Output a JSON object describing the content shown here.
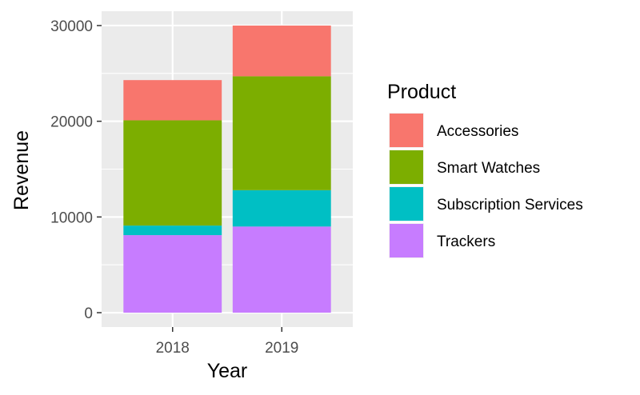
{
  "chart_data": {
    "type": "bar",
    "stacked": true,
    "categories": [
      "2018",
      "2019"
    ],
    "series": [
      {
        "name": "Trackers",
        "values": [
          8100,
          9000
        ],
        "color": "#C77CFF"
      },
      {
        "name": "Subscription Services",
        "values": [
          1000,
          3800
        ],
        "color": "#00BFC4"
      },
      {
        "name": "Smart Watches",
        "values": [
          11000,
          11900
        ],
        "color": "#7CAE00"
      },
      {
        "name": "Accessories",
        "values": [
          4200,
          5300
        ],
        "color": "#F8766D"
      }
    ],
    "title": "",
    "xlabel": "Year",
    "ylabel": "Revenue",
    "ylim": [
      -1500,
      31500
    ],
    "yticks": [
      0,
      10000,
      20000,
      30000
    ],
    "ytick_labels": [
      "0",
      "10000",
      "20000",
      "30000"
    ],
    "grid": true,
    "panel_background": "#EBEBEB",
    "legend": {
      "title": "Product",
      "placement": "right",
      "entries": [
        "Accessories",
        "Smart Watches",
        "Subscription Services",
        "Trackers"
      ]
    }
  }
}
